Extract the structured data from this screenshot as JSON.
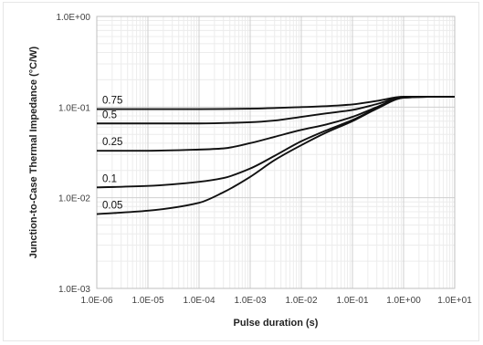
{
  "chart_data": {
    "type": "line",
    "xscale": "log",
    "yscale": "log",
    "xlabel": "Pulse duration (s)",
    "ylabel": "Junction-to-Case Thermal Impedance (°C/W)",
    "xlim": [
      1e-06,
      10
    ],
    "ylim": [
      0.001,
      1
    ],
    "x_tick_labels": [
      "1.0E-06",
      "1.0E-05",
      "1.0E-04",
      "1.0E-03",
      "1.0E-02",
      "1.0E-01",
      "1.0E+00",
      "1.0E+01"
    ],
    "y_tick_labels": [
      "1.0E-03",
      "1.0E-02",
      "1.0E-01",
      "1.0E+00"
    ],
    "grid": "major and minor",
    "line_color": "#111111",
    "series": [
      {
        "name": "0.75",
        "points": [
          [
            1e-06,
            0.095
          ],
          [
            1e-05,
            0.095
          ],
          [
            0.0001,
            0.095
          ],
          [
            0.001,
            0.096
          ],
          [
            0.01,
            0.1
          ],
          [
            0.05,
            0.104
          ],
          [
            0.1,
            0.107
          ],
          [
            0.3,
            0.117
          ],
          [
            1,
            0.13
          ],
          [
            3,
            0.13
          ],
          [
            10,
            0.13
          ]
        ]
      },
      {
        "name": "0.5",
        "points": [
          [
            1e-06,
            0.066
          ],
          [
            1e-05,
            0.066
          ],
          [
            0.0001,
            0.066
          ],
          [
            0.001,
            0.068
          ],
          [
            0.003,
            0.071
          ],
          [
            0.01,
            0.078
          ],
          [
            0.03,
            0.085
          ],
          [
            0.1,
            0.093
          ],
          [
            0.3,
            0.108
          ],
          [
            1,
            0.129
          ],
          [
            3,
            0.13
          ],
          [
            10,
            0.13
          ]
        ]
      },
      {
        "name": "0.25",
        "points": [
          [
            1e-06,
            0.033
          ],
          [
            1e-05,
            0.033
          ],
          [
            0.0001,
            0.034
          ],
          [
            0.0003,
            0.035
          ],
          [
            0.001,
            0.04
          ],
          [
            0.003,
            0.047
          ],
          [
            0.01,
            0.056
          ],
          [
            0.03,
            0.064
          ],
          [
            0.1,
            0.078
          ],
          [
            0.3,
            0.1
          ],
          [
            1,
            0.128
          ],
          [
            3,
            0.13
          ],
          [
            10,
            0.13
          ]
        ]
      },
      {
        "name": "0.1",
        "points": [
          [
            1e-06,
            0.013
          ],
          [
            1e-05,
            0.0135
          ],
          [
            0.0001,
            0.015
          ],
          [
            0.0003,
            0.0165
          ],
          [
            0.001,
            0.021
          ],
          [
            0.003,
            0.029
          ],
          [
            0.01,
            0.042
          ],
          [
            0.03,
            0.055
          ],
          [
            0.1,
            0.072
          ],
          [
            0.3,
            0.097
          ],
          [
            1,
            0.127
          ],
          [
            3,
            0.13
          ],
          [
            10,
            0.13
          ]
        ]
      },
      {
        "name": "0.05",
        "points": [
          [
            1e-06,
            0.0066
          ],
          [
            1e-05,
            0.0072
          ],
          [
            0.0001,
            0.0088
          ],
          [
            0.0003,
            0.0115
          ],
          [
            0.001,
            0.017
          ],
          [
            0.003,
            0.026
          ],
          [
            0.01,
            0.038
          ],
          [
            0.03,
            0.052
          ],
          [
            0.1,
            0.07
          ],
          [
            0.3,
            0.096
          ],
          [
            1,
            0.127
          ],
          [
            3,
            0.13
          ],
          [
            10,
            0.13
          ]
        ]
      }
    ]
  }
}
